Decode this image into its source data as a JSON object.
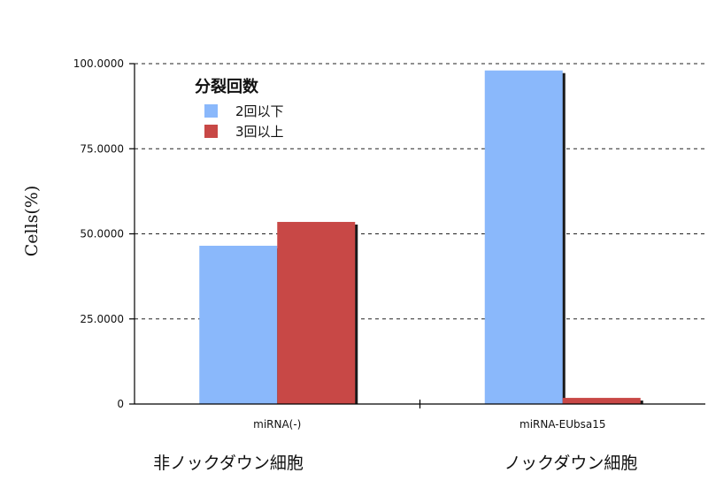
{
  "chart_data": {
    "type": "bar",
    "ylabel": "Cells(%)",
    "xlabel": "",
    "ylim": [
      0,
      100
    ],
    "yticks": [
      0,
      25,
      50,
      75,
      100
    ],
    "ytick_labels": [
      "0",
      "25.0000",
      "50.0000",
      "75.0000",
      "100.0000"
    ],
    "categories": [
      "miRNA(-)",
      "miRNA-EUbsa15"
    ],
    "group_labels": [
      "非ノックダウン細胞",
      "ノックダウン細胞"
    ],
    "legend_title": "分裂回数",
    "legend_position": "top-left",
    "grid": "horizontal-dashed",
    "series": [
      {
        "name": "2回以下",
        "color": "#8ab8fb",
        "values": [
          46.5,
          98.0
        ]
      },
      {
        "name": "3回以上",
        "color": "#c84846",
        "values": [
          53.5,
          1.8
        ]
      }
    ]
  }
}
